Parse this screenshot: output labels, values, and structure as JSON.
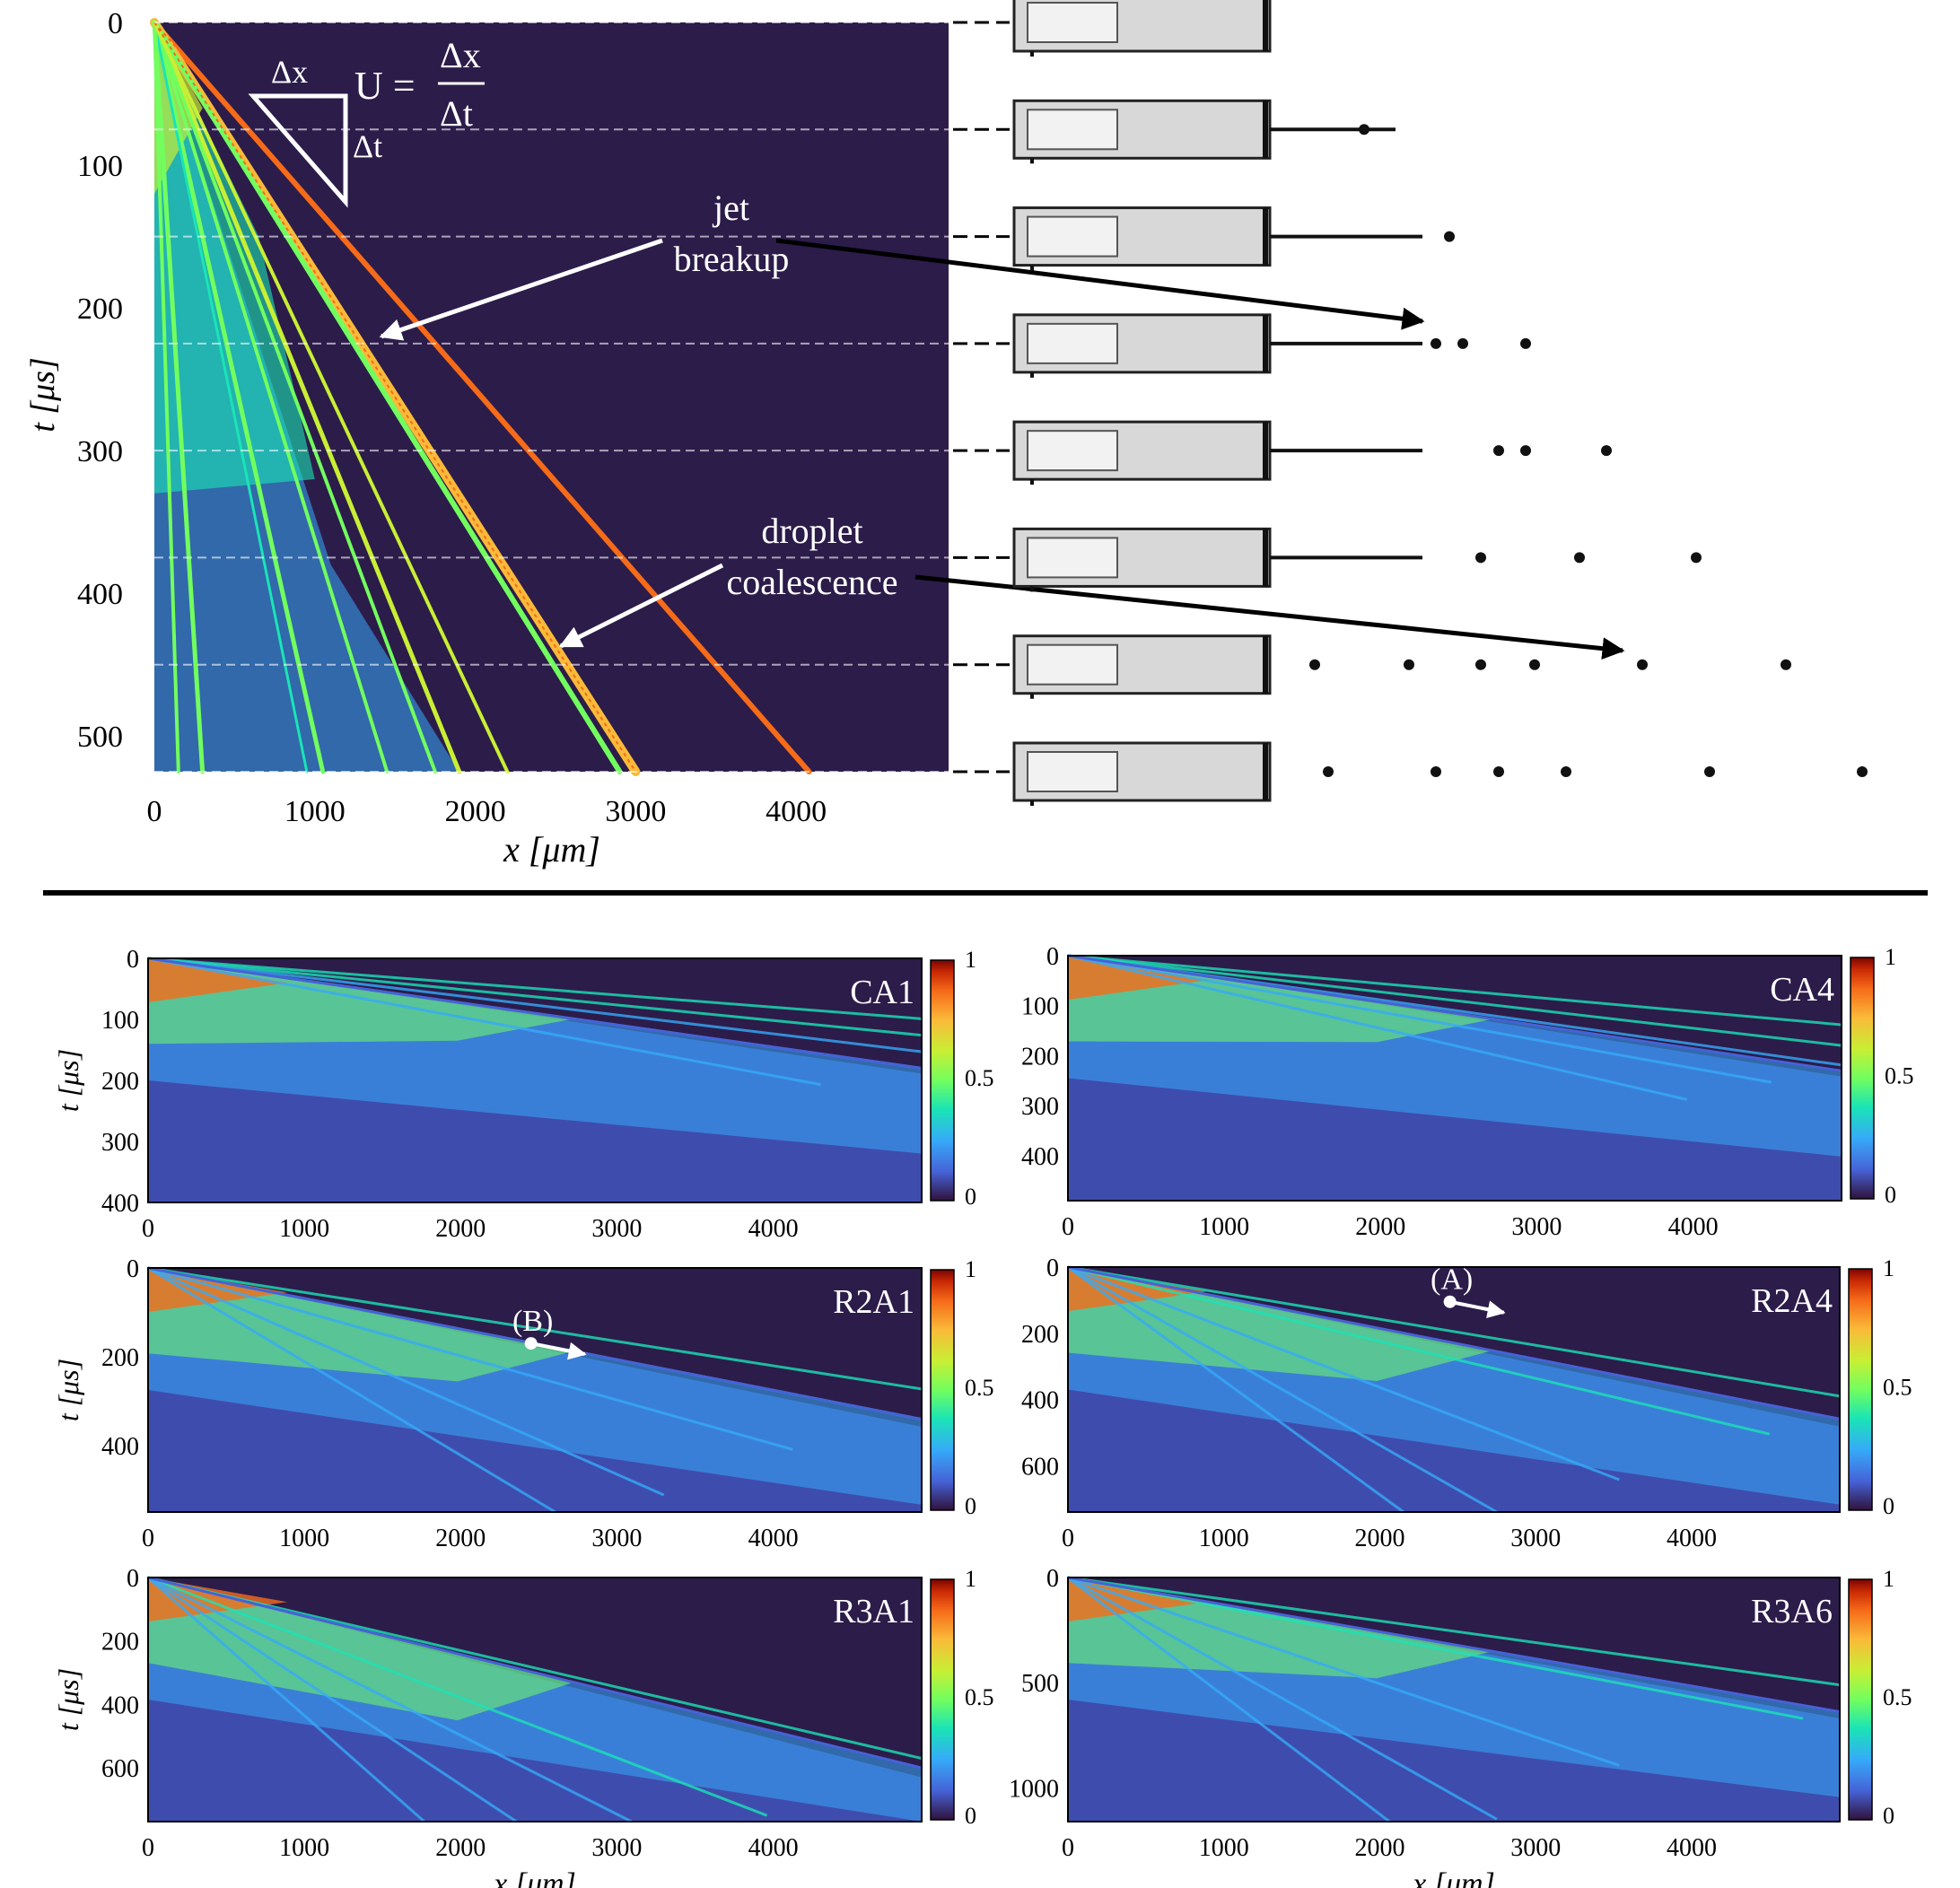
{
  "chart_data": [
    {
      "type": "heatmap",
      "id": "main",
      "xlabel": "x [μm]",
      "ylabel": "t [μs]",
      "xlim": [
        0,
        4950
      ],
      "ylim": [
        0,
        525
      ],
      "y_reversed": true,
      "xticks": [
        "0",
        "1000",
        "2000",
        "3000",
        "4000"
      ],
      "yticks": [
        "0",
        "100",
        "200",
        "300",
        "400",
        "500"
      ],
      "frame_times": [
        0,
        75,
        150,
        225,
        300,
        375,
        450,
        525
      ],
      "annotations": {
        "slope_dx": "Δx",
        "slope_dt": "Δt",
        "velocity_lhs": "U =",
        "velocity_num": "Δx",
        "velocity_den": "Δt",
        "jet_1": "jet",
        "jet_2": "breakup",
        "drop_1": "droplet",
        "drop_2": "coalescence"
      }
    },
    {
      "type": "heatmap",
      "id": "CA1",
      "label": "CA1",
      "xlabel": "",
      "ylabel": "t [μs]",
      "xlim": [
        0,
        4950
      ],
      "ylim": [
        0,
        400
      ],
      "xticks": [
        "0",
        "1000",
        "2000",
        "3000",
        "4000"
      ],
      "yticks": [
        "0",
        "100",
        "200",
        "300",
        "400"
      ],
      "colorbar": {
        "range": [
          0,
          1
        ],
        "ticks": [
          "1",
          "0.5",
          "0"
        ]
      }
    },
    {
      "type": "heatmap",
      "id": "CA4",
      "label": "CA4",
      "xlabel": "",
      "ylabel": "",
      "xlim": [
        0,
        4950
      ],
      "ylim": [
        0,
        490
      ],
      "xticks": [
        "0",
        "1000",
        "2000",
        "3000",
        "4000"
      ],
      "yticks": [
        "0",
        "100",
        "200",
        "300",
        "400"
      ],
      "colorbar": {
        "range": [
          0,
          1
        ],
        "ticks": [
          "1",
          "0.5",
          "0"
        ]
      }
    },
    {
      "type": "heatmap",
      "id": "R2A1",
      "label": "R2A1",
      "xlabel": "",
      "ylabel": "t [μs]",
      "xlim": [
        0,
        4950
      ],
      "ylim": [
        0,
        550
      ],
      "xticks": [
        "0",
        "1000",
        "2000",
        "3000",
        "4000"
      ],
      "yticks": [
        "0",
        "200",
        "400"
      ],
      "colorbar": {
        "range": [
          0,
          1
        ],
        "ticks": [
          "1",
          "0.5",
          "0"
        ]
      },
      "marker": {
        "label": "(B)",
        "x": 2450,
        "t": 170
      }
    },
    {
      "type": "heatmap",
      "id": "R2A4",
      "label": "R2A4",
      "xlabel": "",
      "ylabel": "",
      "xlim": [
        0,
        4950
      ],
      "ylim": [
        0,
        740
      ],
      "xticks": [
        "0",
        "1000",
        "2000",
        "3000",
        "4000"
      ],
      "yticks": [
        "0",
        "200",
        "400",
        "600"
      ],
      "colorbar": {
        "range": [
          0,
          1
        ],
        "ticks": [
          "1",
          "0.5",
          "0"
        ]
      },
      "marker": {
        "label": "(A)",
        "x": 2450,
        "t": 105
      }
    },
    {
      "type": "heatmap",
      "id": "R3A1",
      "label": "R3A1",
      "xlabel": "x [μm]",
      "ylabel": "t [μs]",
      "xlim": [
        0,
        4950
      ],
      "ylim": [
        0,
        770
      ],
      "xticks": [
        "0",
        "1000",
        "2000",
        "3000",
        "4000"
      ],
      "yticks": [
        "0",
        "200",
        "400",
        "600"
      ],
      "colorbar": {
        "range": [
          0,
          1
        ],
        "ticks": [
          "1",
          "0.5",
          "0"
        ]
      }
    },
    {
      "type": "heatmap",
      "id": "R3A6",
      "label": "R3A6",
      "xlabel": "x [μm]",
      "ylabel": "",
      "xlim": [
        0,
        4950
      ],
      "ylim": [
        0,
        1160
      ],
      "xticks": [
        "0",
        "1000",
        "2000",
        "3000",
        "4000"
      ],
      "yticks": [
        "0",
        "500",
        "1000"
      ],
      "colorbar": {
        "range": [
          0,
          1
        ],
        "ticks": [
          "1",
          "0.5",
          "0"
        ]
      }
    }
  ],
  "colors": {
    "background": "#2c1c4a",
    "colormap": [
      "#30123b",
      "#4662d7",
      "#36aaf9",
      "#1ae4b6",
      "#72fe5e",
      "#c8ef34",
      "#faba39",
      "#f66b19",
      "#ca2a04",
      "#7a0403"
    ]
  }
}
